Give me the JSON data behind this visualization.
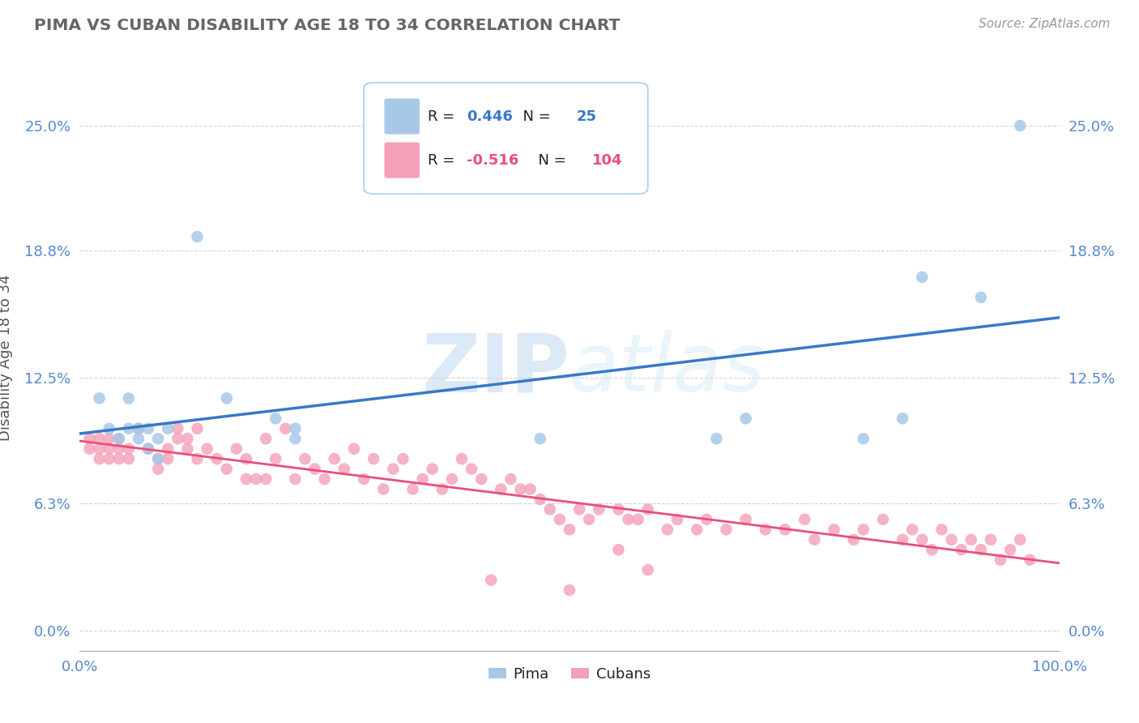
{
  "title": "PIMA VS CUBAN DISABILITY AGE 18 TO 34 CORRELATION CHART",
  "source": "Source: ZipAtlas.com",
  "ylabel": "Disability Age 18 to 34",
  "xlim": [
    0,
    1.0
  ],
  "ylim": [
    -0.01,
    0.28
  ],
  "yticks": [
    0.0,
    0.063,
    0.125,
    0.188,
    0.25
  ],
  "ytick_labels": [
    "0.0%",
    "6.3%",
    "12.5%",
    "18.8%",
    "25.0%"
  ],
  "xtick_labels": [
    "0.0%",
    "100.0%"
  ],
  "xticks": [
    0.0,
    1.0
  ],
  "pima_r": 0.446,
  "pima_n": 25,
  "cuban_r": -0.516,
  "cuban_n": 104,
  "pima_color": "#a8c8e8",
  "cuban_color": "#f4a0b8",
  "pima_line_color": "#3878c8",
  "cuban_line_color": "#e8507a",
  "background_color": "#ffffff",
  "grid_color": "#c8c8c8",
  "watermark_color": "#d0e4f4",
  "pima_x": [
    0.02,
    0.03,
    0.04,
    0.05,
    0.05,
    0.06,
    0.06,
    0.07,
    0.07,
    0.08,
    0.08,
    0.09,
    0.12,
    0.15,
    0.2,
    0.22,
    0.22,
    0.47,
    0.65,
    0.68,
    0.8,
    0.84,
    0.86,
    0.92,
    0.96
  ],
  "pima_y": [
    0.115,
    0.1,
    0.095,
    0.1,
    0.115,
    0.095,
    0.1,
    0.09,
    0.1,
    0.085,
    0.095,
    0.1,
    0.195,
    0.115,
    0.105,
    0.1,
    0.095,
    0.095,
    0.095,
    0.105,
    0.095,
    0.105,
    0.175,
    0.165,
    0.25
  ],
  "cuban_x": [
    0.01,
    0.01,
    0.02,
    0.02,
    0.02,
    0.03,
    0.03,
    0.03,
    0.04,
    0.04,
    0.04,
    0.05,
    0.05,
    0.06,
    0.06,
    0.07,
    0.08,
    0.08,
    0.09,
    0.09,
    0.1,
    0.1,
    0.11,
    0.11,
    0.12,
    0.12,
    0.13,
    0.14,
    0.15,
    0.16,
    0.17,
    0.17,
    0.18,
    0.19,
    0.19,
    0.2,
    0.21,
    0.22,
    0.23,
    0.24,
    0.25,
    0.26,
    0.27,
    0.28,
    0.29,
    0.3,
    0.31,
    0.32,
    0.33,
    0.34,
    0.35,
    0.36,
    0.37,
    0.38,
    0.39,
    0.4,
    0.41,
    0.43,
    0.44,
    0.45,
    0.46,
    0.47,
    0.48,
    0.49,
    0.5,
    0.51,
    0.52,
    0.53,
    0.55,
    0.56,
    0.57,
    0.58,
    0.6,
    0.61,
    0.63,
    0.64,
    0.66,
    0.68,
    0.7,
    0.72,
    0.74,
    0.75,
    0.77,
    0.79,
    0.8,
    0.82,
    0.84,
    0.85,
    0.86,
    0.87,
    0.88,
    0.89,
    0.9,
    0.91,
    0.92,
    0.93,
    0.94,
    0.95,
    0.96,
    0.97,
    0.55,
    0.58,
    0.42,
    0.5
  ],
  "cuban_y": [
    0.095,
    0.09,
    0.085,
    0.09,
    0.095,
    0.085,
    0.09,
    0.095,
    0.085,
    0.09,
    0.095,
    0.085,
    0.09,
    0.1,
    0.1,
    0.09,
    0.085,
    0.08,
    0.09,
    0.085,
    0.1,
    0.095,
    0.095,
    0.09,
    0.085,
    0.1,
    0.09,
    0.085,
    0.08,
    0.09,
    0.075,
    0.085,
    0.075,
    0.095,
    0.075,
    0.085,
    0.1,
    0.075,
    0.085,
    0.08,
    0.075,
    0.085,
    0.08,
    0.09,
    0.075,
    0.085,
    0.07,
    0.08,
    0.085,
    0.07,
    0.075,
    0.08,
    0.07,
    0.075,
    0.085,
    0.08,
    0.075,
    0.07,
    0.075,
    0.07,
    0.07,
    0.065,
    0.06,
    0.055,
    0.05,
    0.06,
    0.055,
    0.06,
    0.06,
    0.055,
    0.055,
    0.06,
    0.05,
    0.055,
    0.05,
    0.055,
    0.05,
    0.055,
    0.05,
    0.05,
    0.055,
    0.045,
    0.05,
    0.045,
    0.05,
    0.055,
    0.045,
    0.05,
    0.045,
    0.04,
    0.05,
    0.045,
    0.04,
    0.045,
    0.04,
    0.045,
    0.035,
    0.04,
    0.045,
    0.035,
    0.04,
    0.03,
    0.025,
    0.02
  ]
}
